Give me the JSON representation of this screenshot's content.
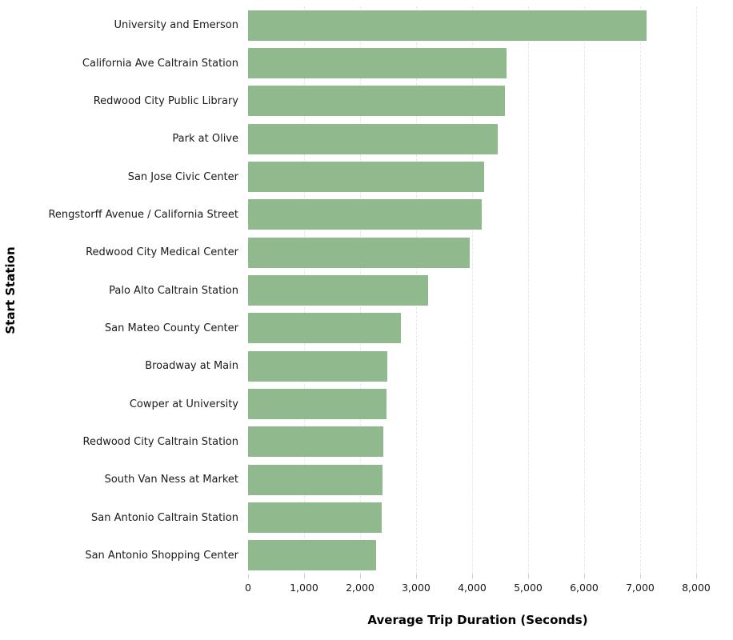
{
  "chart_data": {
    "type": "bar",
    "orientation": "horizontal",
    "title": "",
    "xlabel": "Average Trip Duration (Seconds)",
    "ylabel": "Start Station",
    "categories": [
      "University and Emerson",
      "California Ave Caltrain Station",
      "Redwood City Public Library",
      "Park at Olive",
      "San Jose Civic Center",
      "Rengstorff Avenue / California Street",
      "Redwood City Medical Center",
      "Palo Alto Caltrain Station",
      "San Mateo County Center",
      "Broadway at Main",
      "Cowper at University",
      "Redwood City Caltrain Station",
      "South Van Ness at Market",
      "San Antonio Caltrain Station",
      "San Antonio Shopping Center"
    ],
    "values": [
      7110,
      4620,
      4590,
      4450,
      4220,
      4175,
      3960,
      3215,
      2725,
      2480,
      2475,
      2420,
      2405,
      2385,
      2290
    ],
    "xlim": [
      0,
      8200
    ],
    "xticks": [
      0,
      1000,
      2000,
      3000,
      4000,
      5000,
      6000,
      7000,
      8000
    ],
    "xtick_labels": [
      "0",
      "1,000",
      "2,000",
      "3,000",
      "4,000",
      "5,000",
      "6,000",
      "7,000",
      "8,000"
    ],
    "grid": "vertical-dashed",
    "legend": "none",
    "bar_color": "#90ba8d",
    "gridline_color": "#e7e7e7",
    "background": "#ffffff"
  }
}
